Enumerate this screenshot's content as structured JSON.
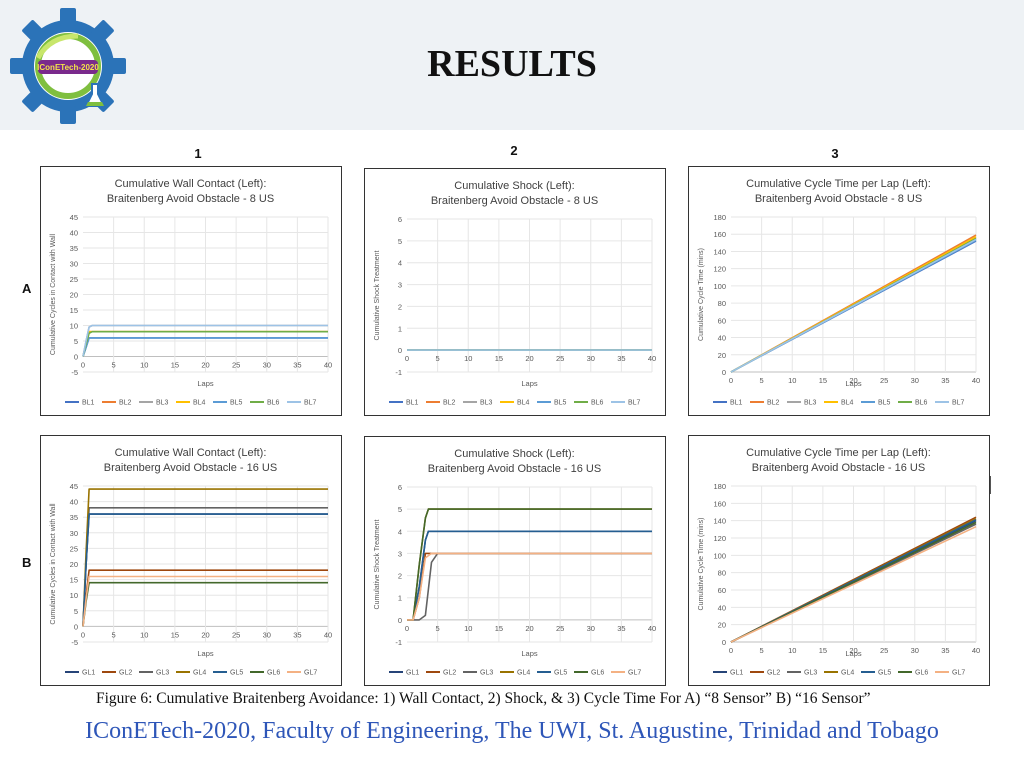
{
  "page": {
    "title": "RESULTS",
    "logo_text": "IConETech-2020",
    "caption": "Figure 6: Cumulative Braitenberg Avoidance: 1) Wall Contact, 2) Shock, & 3) Cycle Time For A) “8 Sensor” B) “16 Sensor”",
    "footer": "IConETech-2020, Faculty of Engineering, The UWI, St. Augustine, Trinidad and Tobago",
    "column_labels": [
      "1",
      "2",
      "3"
    ],
    "row_labels": [
      "A",
      "B"
    ]
  },
  "chart_data": [
    {
      "type": "line",
      "title": "Cumulative Wall Contact (Left):",
      "subtitle": "Braitenberg Avoid Obstacle - 8 US",
      "xlabel": "Laps",
      "ylabel": "Cumulative Cycles in Contact with Wall",
      "xlim": [
        0,
        40
      ],
      "ylim": [
        -5,
        45
      ],
      "xticks": [
        0,
        5,
        10,
        15,
        20,
        25,
        30,
        35,
        40
      ],
      "yticks": [
        -5,
        0,
        5,
        10,
        15,
        20,
        25,
        30,
        35,
        40,
        45
      ],
      "grid": true,
      "legend": "bottom",
      "series": [
        {
          "name": "BL1",
          "color": "#4472c4",
          "x": [
            0,
            0.5,
            1,
            1.5,
            2,
            40
          ],
          "y": [
            0,
            3,
            6,
            6,
            6,
            6
          ]
        },
        {
          "name": "BL2",
          "color": "#ed7d31",
          "x": [
            0,
            0.5,
            1,
            1.5,
            2,
            40
          ],
          "y": [
            0,
            4,
            8,
            8,
            8,
            8
          ]
        },
        {
          "name": "BL3",
          "color": "#a5a5a5",
          "x": [
            0,
            0.5,
            1,
            1.5,
            2,
            40
          ],
          "y": [
            0,
            5,
            9.5,
            10,
            10,
            10
          ]
        },
        {
          "name": "BL4",
          "color": "#ffc000",
          "x": [
            0,
            0.5,
            1,
            1.5,
            2,
            40
          ],
          "y": [
            0,
            4,
            8,
            8,
            8,
            8
          ]
        },
        {
          "name": "BL5",
          "color": "#5b9bd5",
          "x": [
            0,
            0.5,
            1,
            1.5,
            2,
            40
          ],
          "y": [
            0,
            3,
            6,
            6,
            6,
            6
          ]
        },
        {
          "name": "BL6",
          "color": "#70ad47",
          "x": [
            0,
            0.5,
            1,
            1.5,
            2,
            40
          ],
          "y": [
            0,
            4,
            7.5,
            8,
            8,
            8
          ]
        },
        {
          "name": "BL7",
          "color": "#9dc3e6",
          "x": [
            0,
            0.5,
            1,
            1.5,
            2,
            40
          ],
          "y": [
            0,
            5,
            9.5,
            10,
            10,
            10
          ]
        }
      ]
    },
    {
      "type": "line",
      "title": "Cumulative Shock (Left):",
      "subtitle": "Braitenberg Avoid Obstacle - 8 US",
      "xlabel": "Laps",
      "ylabel": "Cumulative Shock Treatment",
      "xlim": [
        0,
        40
      ],
      "ylim": [
        -1,
        6
      ],
      "xticks": [
        0,
        5,
        10,
        15,
        20,
        25,
        30,
        35,
        40
      ],
      "yticks": [
        -1,
        0,
        1,
        2,
        3,
        4,
        5,
        6
      ],
      "grid": true,
      "legend": "bottom",
      "series": [
        {
          "name": "BL1",
          "color": "#4472c4",
          "x": [
            0,
            40
          ],
          "y": [
            0,
            0
          ]
        },
        {
          "name": "BL2",
          "color": "#ed7d31",
          "x": [
            0,
            40
          ],
          "y": [
            0,
            0
          ]
        },
        {
          "name": "BL3",
          "color": "#a5a5a5",
          "x": [
            0,
            40
          ],
          "y": [
            0,
            0
          ]
        },
        {
          "name": "BL4",
          "color": "#ffc000",
          "x": [
            0,
            40
          ],
          "y": [
            0,
            0
          ]
        },
        {
          "name": "BL5",
          "color": "#5b9bd5",
          "x": [
            0,
            40
          ],
          "y": [
            0,
            0
          ]
        },
        {
          "name": "BL6",
          "color": "#70ad47",
          "x": [
            0,
            40
          ],
          "y": [
            0,
            0
          ]
        },
        {
          "name": "BL7",
          "color": "#9dc3e6",
          "x": [
            0,
            40
          ],
          "y": [
            0,
            0
          ]
        }
      ]
    },
    {
      "type": "line",
      "title": "Cumulative Cycle Time per Lap (Left):",
      "subtitle": "Braitenberg Avoid Obstacle - 8 US",
      "xlabel": "Laps",
      "ylabel": "Cumulative Cycle Time (mins)",
      "xlim": [
        0,
        40
      ],
      "ylim": [
        0,
        180
      ],
      "xticks": [
        0,
        5,
        10,
        15,
        20,
        25,
        30,
        35,
        40
      ],
      "yticks": [
        0,
        20,
        40,
        60,
        80,
        100,
        120,
        140,
        160,
        180
      ],
      "grid": true,
      "legend": "bottom",
      "series": [
        {
          "name": "BL1",
          "color": "#4472c4",
          "x": [
            0,
            40
          ],
          "y": [
            0,
            152
          ]
        },
        {
          "name": "BL2",
          "color": "#ed7d31",
          "x": [
            0,
            40
          ],
          "y": [
            0,
            159
          ]
        },
        {
          "name": "BL3",
          "color": "#a5a5a5",
          "x": [
            0,
            40
          ],
          "y": [
            0,
            156
          ]
        },
        {
          "name": "BL4",
          "color": "#ffc000",
          "x": [
            0,
            40
          ],
          "y": [
            0,
            157
          ]
        },
        {
          "name": "BL5",
          "color": "#5b9bd5",
          "x": [
            0,
            40
          ],
          "y": [
            0,
            153
          ]
        },
        {
          "name": "BL6",
          "color": "#70ad47",
          "x": [
            0,
            40
          ],
          "y": [
            0,
            155
          ]
        },
        {
          "name": "BL7",
          "color": "#9dc3e6",
          "x": [
            0,
            40
          ],
          "y": [
            0,
            154
          ]
        }
      ]
    },
    {
      "type": "line",
      "title": "Cumulative Wall Contact (Left):",
      "subtitle": "Braitenberg Avoid Obstacle - 16 US",
      "xlabel": "Laps",
      "ylabel": "Cumulative Cycles in Contact with Wall",
      "xlim": [
        0,
        40
      ],
      "ylim": [
        -5,
        45
      ],
      "xticks": [
        0,
        5,
        10,
        15,
        20,
        25,
        30,
        35,
        40
      ],
      "yticks": [
        -5,
        0,
        5,
        10,
        15,
        20,
        25,
        30,
        35,
        40,
        45
      ],
      "grid": true,
      "legend": "bottom",
      "series": [
        {
          "name": "GL1",
          "color": "#264478",
          "x": [
            0,
            0.5,
            1,
            1.5,
            2,
            40
          ],
          "y": [
            0,
            20,
            36,
            36,
            36,
            36
          ]
        },
        {
          "name": "GL2",
          "color": "#9e480e",
          "x": [
            0,
            0.5,
            1,
            1.5,
            2,
            40
          ],
          "y": [
            0,
            10,
            18,
            18,
            18,
            18
          ]
        },
        {
          "name": "GL3",
          "color": "#636363",
          "x": [
            0,
            0.5,
            1,
            1.5,
            2,
            40
          ],
          "y": [
            0,
            20,
            38,
            38,
            38,
            38
          ]
        },
        {
          "name": "GL4",
          "color": "#997300",
          "x": [
            0,
            0.5,
            1,
            1.5,
            2,
            40
          ],
          "y": [
            0,
            24,
            44,
            44,
            44,
            44
          ]
        },
        {
          "name": "GL5",
          "color": "#255e91",
          "x": [
            0,
            0.5,
            1,
            1.5,
            2,
            40
          ],
          "y": [
            0,
            20,
            36,
            36,
            36,
            36
          ]
        },
        {
          "name": "GL6",
          "color": "#43682b",
          "x": [
            0,
            0.5,
            1,
            1.5,
            2,
            40
          ],
          "y": [
            0,
            8,
            14,
            14,
            14,
            14
          ]
        },
        {
          "name": "GL7",
          "color": "#f4b183",
          "x": [
            0,
            0.5,
            1,
            1.5,
            2,
            40
          ],
          "y": [
            0,
            9,
            16,
            16,
            16,
            16
          ]
        }
      ]
    },
    {
      "type": "line",
      "title": "Cumulative Shock (Left):",
      "subtitle": "Braitenberg Avoid Obstacle - 16 US",
      "xlabel": "Laps",
      "ylabel": "Cumulative Shock Treatment",
      "xlim": [
        0,
        40
      ],
      "ylim": [
        -1,
        6
      ],
      "xticks": [
        0,
        5,
        10,
        15,
        20,
        25,
        30,
        35,
        40
      ],
      "yticks": [
        -1,
        0,
        1,
        2,
        3,
        4,
        5,
        6
      ],
      "grid": true,
      "legend": "bottom",
      "series": [
        {
          "name": "GL1",
          "color": "#264478",
          "x": [
            0,
            1,
            2,
            3,
            3.5,
            4,
            40
          ],
          "y": [
            0,
            0,
            1.5,
            3.6,
            4,
            4,
            4
          ]
        },
        {
          "name": "GL2",
          "color": "#9e480e",
          "x": [
            0,
            1,
            2,
            3,
            3.5,
            4,
            40
          ],
          "y": [
            0,
            0,
            1,
            3,
            3,
            3,
            3
          ]
        },
        {
          "name": "GL3",
          "color": "#636363",
          "x": [
            0,
            1,
            2,
            3,
            4,
            5,
            40
          ],
          "y": [
            0,
            0,
            0,
            0.2,
            2.6,
            3,
            3
          ]
        },
        {
          "name": "GL4",
          "color": "#997300",
          "x": [
            0,
            1,
            2,
            3,
            3.5,
            4,
            40
          ],
          "y": [
            0,
            0,
            2.5,
            4.6,
            5,
            5,
            5
          ]
        },
        {
          "name": "GL5",
          "color": "#255e91",
          "x": [
            0,
            1,
            2,
            3,
            3.5,
            4,
            40
          ],
          "y": [
            0,
            0,
            1.5,
            3.6,
            4,
            4,
            4
          ]
        },
        {
          "name": "GL6",
          "color": "#43682b",
          "x": [
            0,
            1,
            2,
            3,
            3.5,
            4,
            40
          ],
          "y": [
            0,
            0,
            2.5,
            4.6,
            5,
            5,
            5
          ]
        },
        {
          "name": "GL7",
          "color": "#f4b183",
          "x": [
            0,
            1,
            2,
            3,
            4,
            40
          ],
          "y": [
            0,
            0,
            1,
            2.8,
            3,
            3
          ]
        }
      ]
    },
    {
      "type": "line",
      "title": "Cumulative Cycle Time per Lap (Left):",
      "subtitle": "Braitenberg Avoid Obstacle - 16 US",
      "xlabel": "Laps",
      "ylabel": "Cumulative Cycle Time (mins)",
      "xlim": [
        0,
        40
      ],
      "ylim": [
        0,
        180
      ],
      "xticks": [
        0,
        5,
        10,
        15,
        20,
        25,
        30,
        35,
        40
      ],
      "yticks": [
        0,
        20,
        40,
        60,
        80,
        100,
        120,
        140,
        160,
        180
      ],
      "grid": true,
      "legend": "bottom",
      "series": [
        {
          "name": "GL1",
          "color": "#264478",
          "x": [
            0,
            40
          ],
          "y": [
            0,
            140
          ]
        },
        {
          "name": "GL2",
          "color": "#9e480e",
          "x": [
            0,
            40
          ],
          "y": [
            0,
            144
          ]
        },
        {
          "name": "GL3",
          "color": "#636363",
          "x": [
            0,
            40
          ],
          "y": [
            0,
            136
          ]
        },
        {
          "name": "GL4",
          "color": "#997300",
          "x": [
            0,
            40
          ],
          "y": [
            0,
            142
          ]
        },
        {
          "name": "GL5",
          "color": "#255e91",
          "x": [
            0,
            40
          ],
          "y": [
            0,
            141
          ]
        },
        {
          "name": "GL6",
          "color": "#43682b",
          "x": [
            0,
            40
          ],
          "y": [
            0,
            138
          ]
        },
        {
          "name": "GL7",
          "color": "#f4b183",
          "x": [
            0,
            40
          ],
          "y": [
            0,
            133
          ]
        }
      ]
    }
  ]
}
